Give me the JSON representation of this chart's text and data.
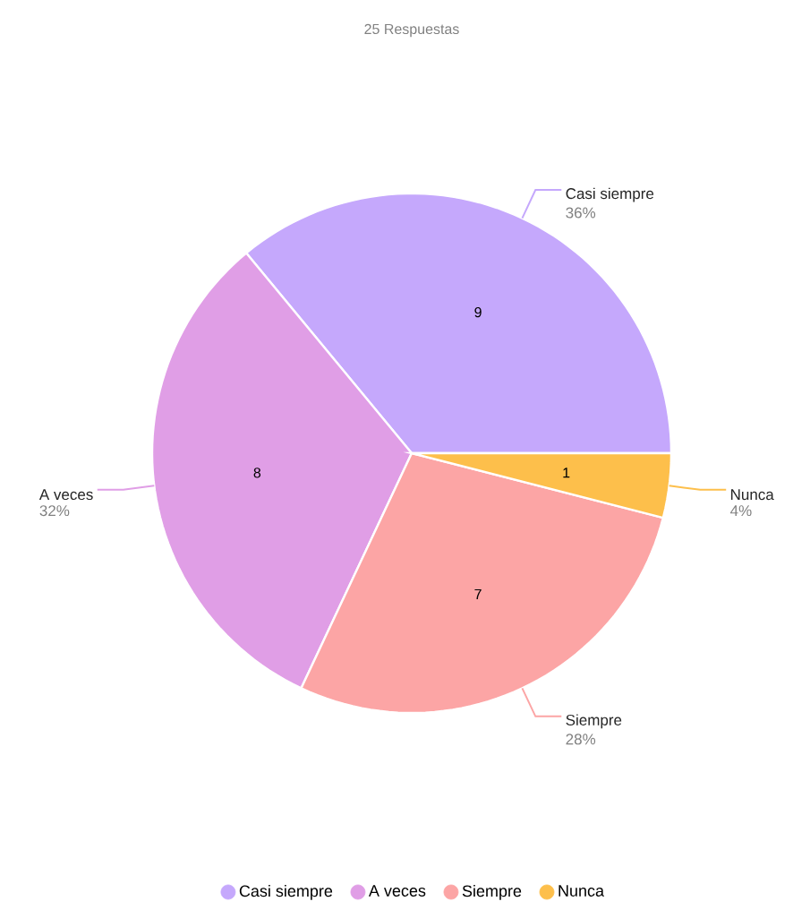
{
  "chart_data": {
    "type": "pie",
    "title": "25 Respuestas",
    "categories": [
      "Casi siempre",
      "A veces",
      "Siempre",
      "Nunca"
    ],
    "values": [
      36,
      32,
      28,
      4
    ],
    "value_labels": [
      "36%",
      "32%",
      "28%",
      "4%"
    ],
    "annotations": [
      {
        "text": "9",
        "x": "Casi siempre"
      },
      {
        "text": "8",
        "x": "A veces"
      },
      {
        "text": "7",
        "x": "Siempre"
      },
      {
        "text": "1",
        "x": "Nunca"
      }
    ],
    "colors": [
      "#c5a8fc",
      "#e09ee6",
      "#fca5a5",
      "#fdbf4b"
    ],
    "legend": "bottom"
  }
}
